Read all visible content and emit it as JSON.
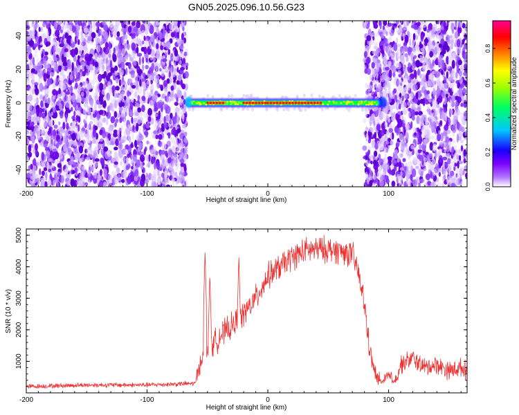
{
  "title": "GN05.2025.096.10.56.G23",
  "colors": {
    "snr_line": "#f03030",
    "frame": "#000000"
  },
  "chart_data": [
    {
      "type": "heatmap",
      "xlabel": "Height of straight line (km)",
      "ylabel": "Frequency (Hz)",
      "xlim": [
        -200,
        165
      ],
      "ylim": [
        -50,
        49
      ],
      "x_ticks": [
        -200,
        -100,
        0,
        100
      ],
      "x_tick_labels": [
        "-200",
        "-100",
        "0",
        "100"
      ],
      "y_ticks": [
        -40,
        -20,
        0,
        20,
        40
      ],
      "y_tick_labels": [
        "-40",
        "-20",
        "0",
        "20",
        "40"
      ],
      "noise_regions": [
        {
          "x_from": -200,
          "x_to": -67
        },
        {
          "x_from": 80,
          "x_to": 165
        }
      ],
      "signal_band": {
        "x_from": -68,
        "x_to": 95,
        "center_hz": 0,
        "peak_segments": [
          [
            -50,
            -35
          ],
          [
            -20,
            5
          ],
          [
            0,
            45
          ]
        ]
      },
      "colorbar": {
        "label": "Normalized spectral amplitude",
        "range": [
          0,
          0.96
        ],
        "ticks": [
          0.0,
          0.2,
          0.4,
          0.6,
          0.8
        ],
        "tick_labels": [
          "0.0",
          "0.2",
          "0.4",
          "0.6",
          "0.8"
        ],
        "colormap": [
          "#ffffff",
          "#7a00ff",
          "#0000ff",
          "#00c8ff",
          "#00ff00",
          "#ffff00",
          "#ff8000",
          "#ff0000",
          "#ff00a0"
        ]
      }
    },
    {
      "type": "line",
      "xlabel": "Height of straight line (km)",
      "ylabel": "SNR (10 * v/v)",
      "xlim": [
        -200,
        165
      ],
      "ylim": [
        0,
        5200
      ],
      "x_ticks": [
        -200,
        -100,
        0,
        100
      ],
      "x_tick_labels": [
        "-200",
        "-100",
        "0",
        "100"
      ],
      "y_ticks": [
        1000,
        2000,
        3000,
        4000,
        5000
      ],
      "y_tick_labels": [
        "1000",
        "2000",
        "3000",
        "4000",
        "5000"
      ],
      "series": [
        {
          "name": "SNR",
          "x": [
            -200,
            -150,
            -100,
            -60,
            -55,
            -50,
            -40,
            -30,
            -20,
            -10,
            0,
            10,
            20,
            30,
            40,
            50,
            60,
            70,
            75,
            80,
            85,
            90,
            95,
            100,
            105,
            110,
            120,
            130,
            140,
            150,
            160,
            165
          ],
          "y": [
            200,
            250,
            250,
            300,
            1100,
            1300,
            1800,
            2100,
            2500,
            3000,
            3700,
            4000,
            4300,
            4500,
            4550,
            4550,
            4500,
            4400,
            3800,
            2800,
            1200,
            450,
            350,
            500,
            350,
            900,
            1100,
            800,
            900,
            700,
            800,
            700
          ],
          "spikes": [
            {
              "x": -52,
              "y": 4500
            },
            {
              "x": -48,
              "y": 3800
            },
            {
              "x": -24,
              "y": 4350
            }
          ]
        }
      ]
    }
  ]
}
